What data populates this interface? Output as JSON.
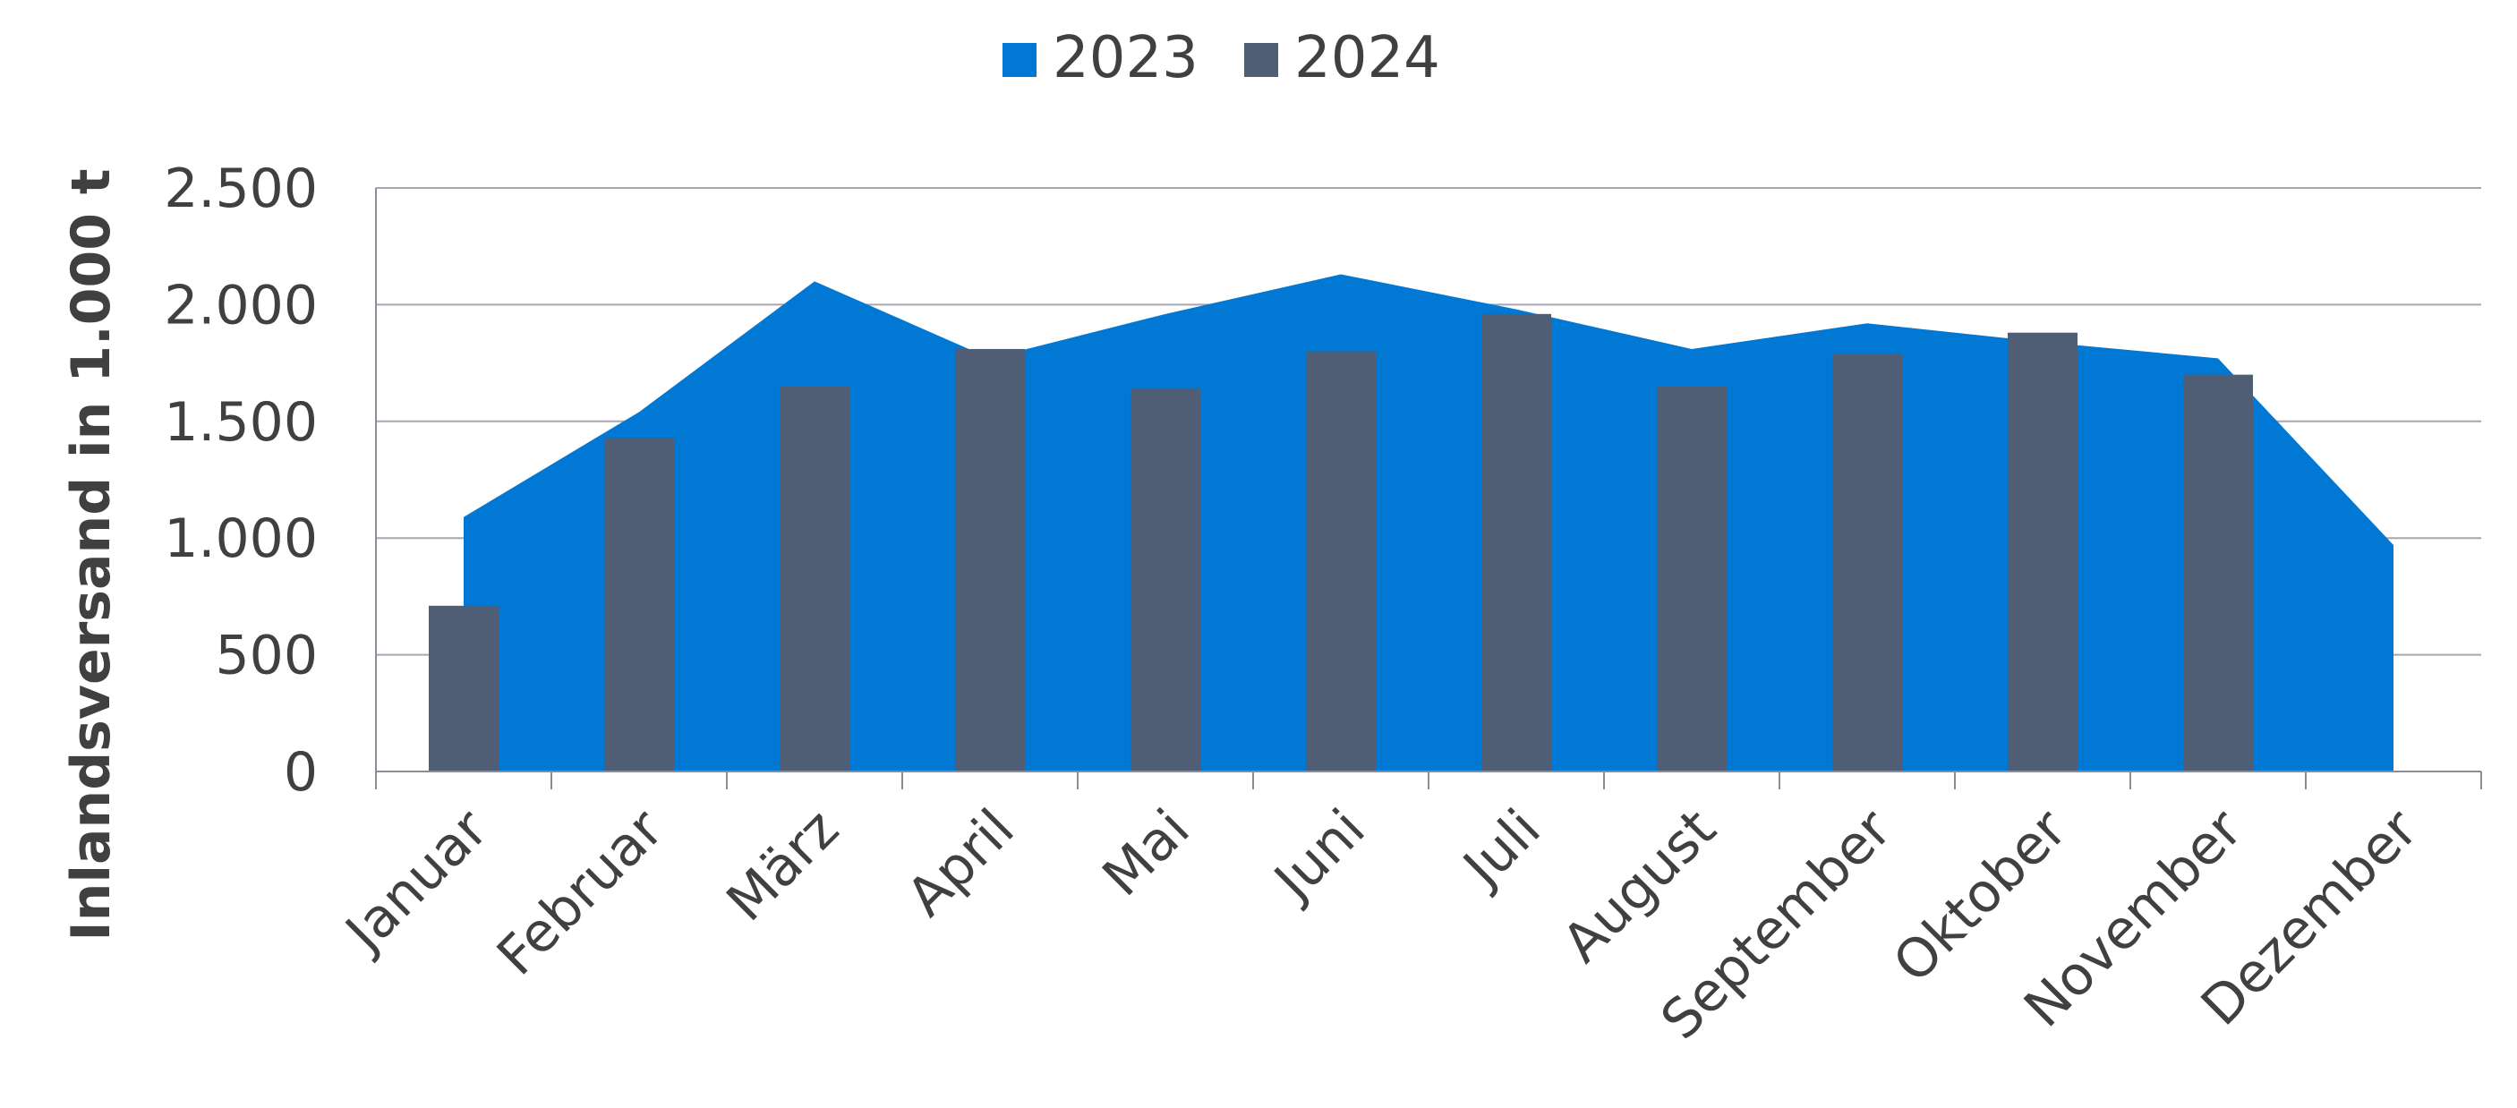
{
  "chart_data": {
    "type": "bar",
    "title": "",
    "xlabel": "",
    "ylabel": "Inlandsversand in 1.000 t",
    "ylim": [
      0,
      2500
    ],
    "yticks": [
      0,
      500,
      1000,
      1500,
      2000,
      2500
    ],
    "ytick_labels": [
      "0",
      "500",
      "1.000",
      "1.500",
      "2.000",
      "2.500"
    ],
    "grid": true,
    "legend_position": "top",
    "categories": [
      "Januar",
      "Februar",
      "März",
      "April",
      "Mai",
      "Juni",
      "Juli",
      "August",
      "September",
      "Oktober",
      "November",
      "Dezember"
    ],
    "series": [
      {
        "name": "2023",
        "kind": "area",
        "color": "#0078D4",
        "values": [
          1090,
          1540,
          2100,
          1770,
          1960,
          2130,
          1980,
          1810,
          1920,
          1840,
          1770,
          970
        ]
      },
      {
        "name": "2024",
        "kind": "bar",
        "color": "#4F5D75",
        "values": [
          710,
          1430,
          1650,
          1810,
          1640,
          1800,
          1960,
          1650,
          1790,
          1880,
          1700,
          null
        ]
      }
    ]
  }
}
